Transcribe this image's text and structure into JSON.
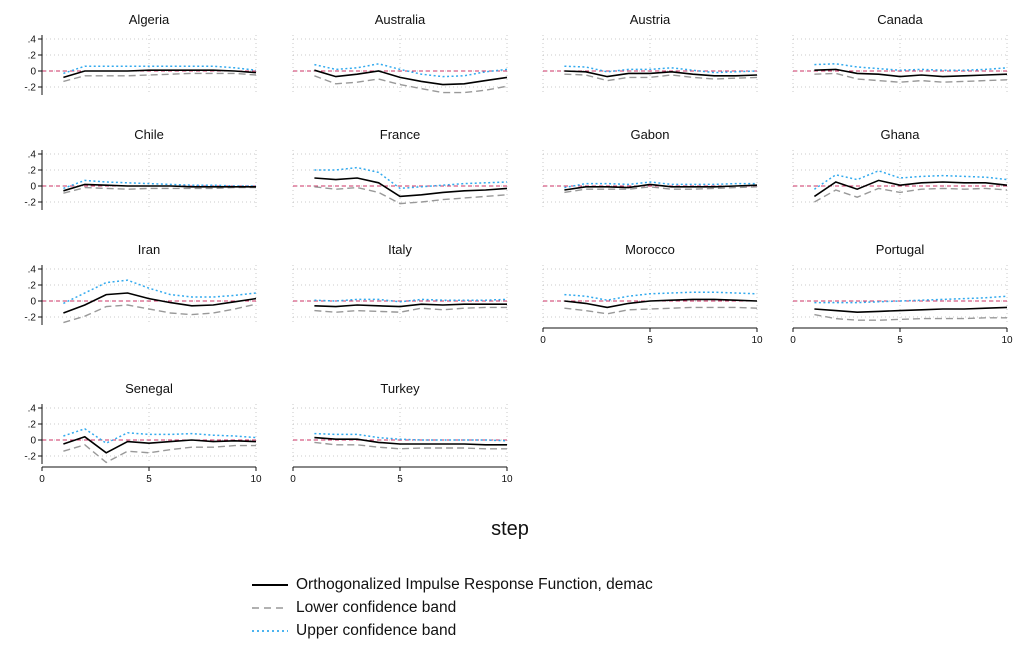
{
  "chart_data": {
    "type": "line",
    "layout": "small-multiples",
    "x": [
      1,
      2,
      3,
      4,
      5,
      6,
      7,
      8,
      9,
      10
    ],
    "xlim": [
      0,
      10
    ],
    "xticks": [
      "0",
      "5",
      "10"
    ],
    "ylim": [
      -0.3,
      0.45
    ],
    "yticks": [
      ".4",
      ".2",
      "0",
      "-.2"
    ],
    "xlabel": "step",
    "reference_line": 0,
    "colors": {
      "irf": "#000000",
      "lower": "#999999",
      "upper": "#33aaee",
      "zero": "#cc3366",
      "grid": "#bbbbbb"
    },
    "series_names": {
      "irf": "Orthogonalized Impulse Response Function, demac",
      "lower": "Lower confidence band",
      "upper": "Upper confidence band"
    },
    "panels": [
      {
        "title": "Algeria",
        "irf": [
          -0.08,
          0.0,
          0.0,
          0.0,
          0.01,
          0.01,
          0.01,
          0.01,
          0.0,
          -0.02
        ],
        "lower": [
          -0.13,
          -0.06,
          -0.06,
          -0.06,
          -0.05,
          -0.04,
          -0.03,
          -0.03,
          -0.03,
          -0.05
        ],
        "upper": [
          -0.03,
          0.06,
          0.06,
          0.06,
          0.06,
          0.06,
          0.06,
          0.06,
          0.04,
          0.01
        ]
      },
      {
        "title": "Australia",
        "irf": [
          0.01,
          -0.07,
          -0.04,
          0.0,
          -0.08,
          -0.13,
          -0.17,
          -0.16,
          -0.12,
          -0.08
        ],
        "lower": [
          -0.06,
          -0.16,
          -0.14,
          -0.1,
          -0.17,
          -0.22,
          -0.27,
          -0.27,
          -0.24,
          -0.19
        ],
        "upper": [
          0.08,
          0.02,
          0.04,
          0.09,
          0.02,
          -0.04,
          -0.07,
          -0.06,
          -0.01,
          0.02
        ]
      },
      {
        "title": "Austria",
        "irf": [
          0.0,
          -0.01,
          -0.07,
          -0.03,
          -0.03,
          -0.01,
          -0.04,
          -0.06,
          -0.06,
          -0.05
        ],
        "lower": [
          -0.04,
          -0.05,
          -0.12,
          -0.08,
          -0.08,
          -0.05,
          -0.08,
          -0.1,
          -0.09,
          -0.08
        ],
        "upper": [
          0.06,
          0.05,
          -0.01,
          0.02,
          0.02,
          0.04,
          0.01,
          -0.02,
          -0.01,
          0.0
        ]
      },
      {
        "title": "Canada",
        "irf": [
          0.01,
          0.02,
          -0.03,
          -0.04,
          -0.07,
          -0.05,
          -0.07,
          -0.06,
          -0.05,
          -0.04
        ],
        "lower": [
          -0.04,
          -0.03,
          -0.1,
          -0.12,
          -0.14,
          -0.12,
          -0.14,
          -0.13,
          -0.12,
          -0.11
        ],
        "upper": [
          0.08,
          0.09,
          0.05,
          0.03,
          0.01,
          0.02,
          0.01,
          0.01,
          0.02,
          0.04
        ]
      },
      {
        "title": "Chile",
        "irf": [
          -0.06,
          0.02,
          0.01,
          0.0,
          0.0,
          0.0,
          -0.01,
          -0.01,
          -0.01,
          -0.01
        ],
        "lower": [
          -0.09,
          -0.02,
          -0.03,
          -0.04,
          -0.03,
          -0.03,
          -0.03,
          -0.03,
          -0.02,
          -0.02
        ],
        "upper": [
          -0.03,
          0.07,
          0.05,
          0.04,
          0.03,
          0.02,
          0.01,
          0.01,
          0.0,
          0.0
        ]
      },
      {
        "title": "France",
        "irf": [
          0.1,
          0.08,
          0.1,
          0.04,
          -0.13,
          -0.11,
          -0.08,
          -0.06,
          -0.05,
          -0.03
        ],
        "lower": [
          -0.01,
          -0.04,
          -0.02,
          -0.08,
          -0.22,
          -0.2,
          -0.17,
          -0.15,
          -0.13,
          -0.11
        ],
        "upper": [
          0.2,
          0.2,
          0.23,
          0.17,
          -0.03,
          -0.01,
          0.01,
          0.03,
          0.04,
          0.05
        ]
      },
      {
        "title": "Gabon",
        "irf": [
          -0.05,
          -0.01,
          -0.01,
          -0.02,
          0.02,
          -0.01,
          -0.01,
          -0.01,
          0.0,
          0.01
        ],
        "lower": [
          -0.08,
          -0.04,
          -0.04,
          -0.04,
          -0.01,
          -0.04,
          -0.04,
          -0.03,
          -0.02,
          -0.01
        ],
        "upper": [
          -0.02,
          0.03,
          0.03,
          0.02,
          0.05,
          0.02,
          0.02,
          0.02,
          0.03,
          0.03
        ]
      },
      {
        "title": "Ghana",
        "irf": [
          -0.13,
          0.05,
          -0.04,
          0.07,
          0.01,
          0.04,
          0.05,
          0.04,
          0.04,
          0.01
        ],
        "lower": [
          -0.2,
          -0.05,
          -0.14,
          -0.03,
          -0.08,
          -0.04,
          -0.03,
          -0.04,
          -0.03,
          -0.05
        ],
        "upper": [
          -0.04,
          0.14,
          0.08,
          0.19,
          0.1,
          0.12,
          0.13,
          0.12,
          0.11,
          0.08
        ]
      },
      {
        "title": "Iran",
        "irf": [
          -0.15,
          -0.05,
          0.08,
          0.1,
          0.03,
          -0.02,
          -0.06,
          -0.05,
          -0.01,
          0.03
        ],
        "lower": [
          -0.27,
          -0.19,
          -0.07,
          -0.05,
          -0.1,
          -0.15,
          -0.17,
          -0.15,
          -0.1,
          -0.04
        ],
        "upper": [
          -0.03,
          0.1,
          0.23,
          0.26,
          0.16,
          0.08,
          0.05,
          0.05,
          0.07,
          0.1
        ]
      },
      {
        "title": "Italy",
        "irf": [
          -0.06,
          -0.07,
          -0.05,
          -0.06,
          -0.07,
          -0.04,
          -0.05,
          -0.04,
          -0.04,
          -0.04
        ],
        "lower": [
          -0.12,
          -0.14,
          -0.12,
          -0.13,
          -0.14,
          -0.09,
          -0.11,
          -0.09,
          -0.08,
          -0.08
        ],
        "upper": [
          0.01,
          0.0,
          0.02,
          0.02,
          -0.01,
          0.02,
          0.01,
          0.01,
          0.01,
          0.02
        ]
      },
      {
        "title": "Morocco",
        "irf": [
          0.0,
          -0.03,
          -0.08,
          -0.03,
          0.0,
          0.01,
          0.02,
          0.02,
          0.01,
          0.0
        ],
        "lower": [
          -0.09,
          -0.12,
          -0.16,
          -0.11,
          -0.1,
          -0.09,
          -0.08,
          -0.08,
          -0.08,
          -0.09
        ],
        "upper": [
          0.08,
          0.06,
          0.01,
          0.06,
          0.09,
          0.1,
          0.11,
          0.11,
          0.1,
          0.09
        ]
      },
      {
        "title": "Portugal",
        "irf": [
          -0.1,
          -0.12,
          -0.14,
          -0.13,
          -0.12,
          -0.11,
          -0.1,
          -0.1,
          -0.09,
          -0.08
        ],
        "lower": [
          -0.17,
          -0.22,
          -0.24,
          -0.24,
          -0.23,
          -0.22,
          -0.22,
          -0.22,
          -0.21,
          -0.21
        ],
        "upper": [
          -0.02,
          -0.02,
          -0.02,
          -0.01,
          0.0,
          0.01,
          0.02,
          0.03,
          0.04,
          0.06
        ]
      },
      {
        "title": "Senegal",
        "irf": [
          -0.05,
          0.04,
          -0.16,
          -0.02,
          -0.04,
          -0.02,
          0.0,
          -0.02,
          -0.01,
          -0.02
        ],
        "lower": [
          -0.14,
          -0.06,
          -0.28,
          -0.14,
          -0.16,
          -0.12,
          -0.09,
          -0.09,
          -0.07,
          -0.07
        ],
        "upper": [
          0.05,
          0.14,
          -0.04,
          0.09,
          0.07,
          0.07,
          0.08,
          0.06,
          0.05,
          0.03
        ]
      },
      {
        "title": "Turkey",
        "irf": [
          0.03,
          0.01,
          0.01,
          -0.03,
          -0.05,
          -0.05,
          -0.05,
          -0.05,
          -0.06,
          -0.06
        ],
        "lower": [
          -0.03,
          -0.06,
          -0.06,
          -0.09,
          -0.11,
          -0.1,
          -0.1,
          -0.1,
          -0.11,
          -0.11
        ],
        "upper": [
          0.08,
          0.07,
          0.07,
          0.03,
          0.01,
          0.0,
          0.0,
          0.0,
          0.0,
          -0.01
        ]
      }
    ]
  }
}
